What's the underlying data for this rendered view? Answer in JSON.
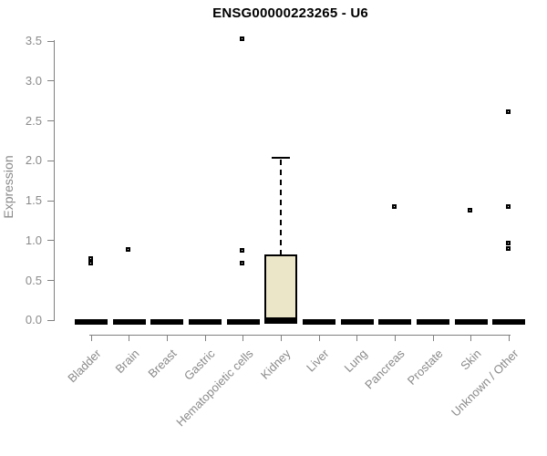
{
  "chart_data": {
    "type": "boxplot",
    "title": "ENSG00000223265 - U6",
    "xlabel": "",
    "ylabel": "Expression",
    "ylim": [
      0,
      3.5
    ],
    "ytick_labels": [
      "0.0",
      "0.5",
      "1.0",
      "1.5",
      "2.0",
      "2.5",
      "3.0",
      "3.5"
    ],
    "ytick_values": [
      0,
      0.5,
      1.0,
      1.5,
      2.0,
      2.5,
      3.0,
      3.5
    ],
    "grid": false,
    "legend": "none",
    "categories": [
      "Bladder",
      "Brain",
      "Breast",
      "Gastric",
      "Hematopoietic cells",
      "Kidney",
      "Liver",
      "Lung",
      "Pancreas",
      "Prostate",
      "Skin",
      "Unknown / Other"
    ],
    "boxes": [
      {
        "category": "Bladder",
        "median": 0,
        "q1": 0,
        "q3": 0,
        "whisker_low": 0,
        "whisker_high": 0,
        "outliers": [
          0.77,
          0.72
        ]
      },
      {
        "category": "Brain",
        "median": 0,
        "q1": 0,
        "q3": 0,
        "whisker_low": 0,
        "whisker_high": 0,
        "outliers": [
          0.89
        ]
      },
      {
        "category": "Breast",
        "median": 0,
        "q1": 0,
        "q3": 0,
        "whisker_low": 0,
        "whisker_high": 0,
        "outliers": []
      },
      {
        "category": "Gastric",
        "median": 0,
        "q1": 0,
        "q3": 0,
        "whisker_low": 0,
        "whisker_high": 0,
        "outliers": []
      },
      {
        "category": "Hematopoietic cells",
        "median": 0,
        "q1": 0,
        "q3": 0,
        "whisker_low": 0,
        "whisker_high": 0,
        "outliers": [
          3.53,
          0.88,
          0.72
        ]
      },
      {
        "category": "Kidney",
        "median": 0.02,
        "q1": 0.01,
        "q3": 0.83,
        "whisker_low": 0.01,
        "whisker_high": 2.04,
        "outliers": []
      },
      {
        "category": "Liver",
        "median": 0,
        "q1": 0,
        "q3": 0,
        "whisker_low": 0,
        "whisker_high": 0,
        "outliers": []
      },
      {
        "category": "Lung",
        "median": 0,
        "q1": 0,
        "q3": 0,
        "whisker_low": 0,
        "whisker_high": 0,
        "outliers": []
      },
      {
        "category": "Pancreas",
        "median": 0,
        "q1": 0,
        "q3": 0,
        "whisker_low": 0,
        "whisker_high": 0,
        "outliers": [
          1.43
        ]
      },
      {
        "category": "Prostate",
        "median": 0,
        "q1": 0,
        "q3": 0,
        "whisker_low": 0,
        "whisker_high": 0,
        "outliers": []
      },
      {
        "category": "Skin",
        "median": 0,
        "q1": 0,
        "q3": 0,
        "whisker_low": 0,
        "whisker_high": 0,
        "outliers": [
          1.38
        ]
      },
      {
        "category": "Unknown / Other",
        "median": 0,
        "q1": 0,
        "q3": 0,
        "whisker_low": 0,
        "whisker_high": 0,
        "outliers": [
          2.62,
          1.43,
          0.97,
          0.9
        ]
      }
    ],
    "colors": {
      "box_fill": "#ece6c8",
      "box_stroke": "#000000",
      "axis": "#808080",
      "tick_label": "#8a8a8a",
      "title": "#000000",
      "background": "#ffffff"
    }
  }
}
